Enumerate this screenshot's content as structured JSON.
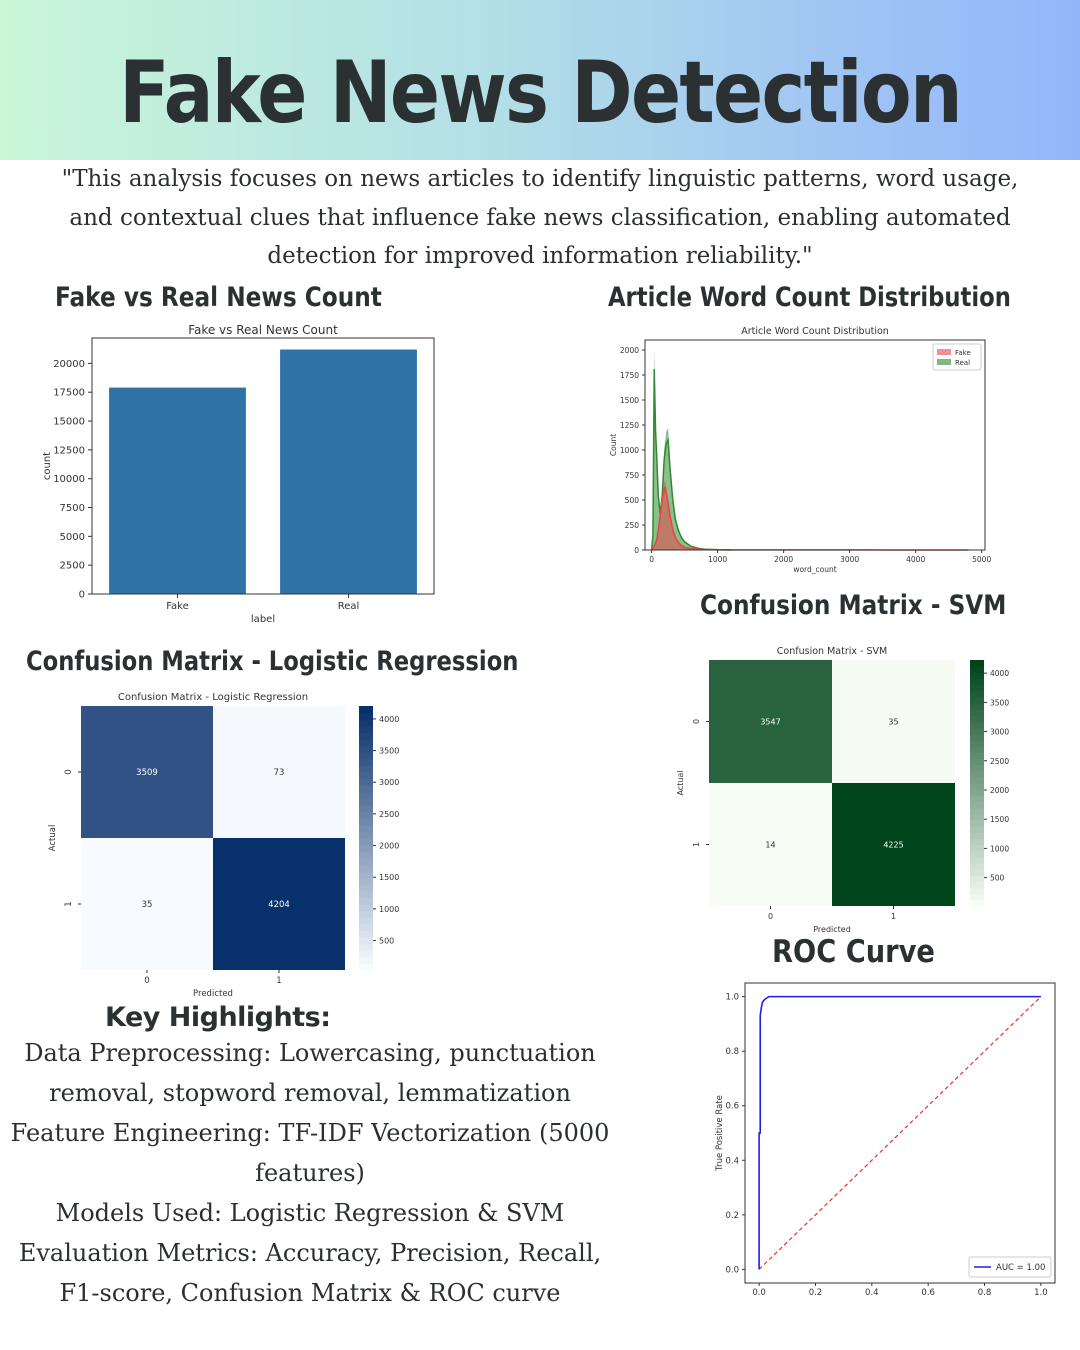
{
  "header": {
    "title": "Fake News Detection"
  },
  "intro": "\"This analysis focuses on news articles to identify linguistic patterns, word usage, and contextual clues that influence fake news classification, enabling automated detection for improved information reliability.\"",
  "sections": {
    "count_title": "Fake vs Real News Count",
    "word_count_title": "Article Word Count Distribution",
    "svm_title": "Confusion Matrix - SVM",
    "lr_title": "Confusion Matrix - Logistic Regression",
    "roc_title": "ROC Curve",
    "highlights_title": "Key Highlights:"
  },
  "highlights": [
    "Data Preprocessing: Lowercasing, punctuation removal, stopword removal, lemmatization",
    "Feature Engineering: TF-IDF Vectorization (5000 features)",
    "Models Used: Logistic Regression & SVM",
    "Evaluation Metrics: Accuracy, Precision, Recall, F1-score, Confusion Matrix & ROC curve"
  ],
  "colors": {
    "bar": "#2f73a6",
    "fake": "#e8444a",
    "real": "#2e8b2e",
    "roc": "#1f1fe0",
    "diag": "#e0332f"
  },
  "chart_data": [
    {
      "type": "bar",
      "title": "Fake vs Real News Count",
      "xlabel": "label",
      "ylabel": "count",
      "categories": [
        "Fake",
        "Real"
      ],
      "values": [
        17900,
        21200
      ],
      "ylim": [
        0,
        22200
      ],
      "yticks": [
        0,
        2500,
        5000,
        7500,
        10000,
        12500,
        15000,
        17500,
        20000
      ]
    },
    {
      "type": "area",
      "title": "Article Word Count Distribution",
      "xlabel": "word_count",
      "ylabel": "Count",
      "xlim": [
        -100,
        5050
      ],
      "ylim": [
        0,
        2100
      ],
      "xticks": [
        0,
        1000,
        2000,
        3000,
        4000,
        5000
      ],
      "yticks": [
        0,
        250,
        500,
        750,
        1000,
        1250,
        1500,
        1750,
        2000
      ],
      "legend": "top-right",
      "series": [
        {
          "name": "Fake",
          "x": [
            0,
            40,
            80,
            120,
            160,
            200,
            240,
            280,
            320,
            360,
            400,
            450,
            500,
            600,
            700,
            900,
            1200,
            2000,
            3000,
            4800
          ],
          "values": [
            0,
            40,
            120,
            320,
            560,
            700,
            560,
            380,
            230,
            140,
            90,
            50,
            30,
            15,
            8,
            4,
            2,
            1,
            1,
            0
          ]
        },
        {
          "name": "Real",
          "x": [
            0,
            20,
            40,
            60,
            80,
            100,
            130,
            160,
            190,
            220,
            250,
            280,
            320,
            360,
            400,
            450,
            500,
            600,
            700,
            800,
            1000,
            1200
          ],
          "values": [
            0,
            150,
            2010,
            1320,
            1000,
            620,
            400,
            600,
            1000,
            1180,
            1220,
            900,
            560,
            340,
            230,
            140,
            90,
            40,
            20,
            10,
            3,
            0
          ]
        }
      ]
    },
    {
      "type": "heatmap",
      "title": "Confusion Matrix - SVM",
      "xlabel": "Predicted",
      "ylabel": "Actual",
      "x": [
        "0",
        "1"
      ],
      "y": [
        "0",
        "1"
      ],
      "values": [
        [
          3547,
          35
        ],
        [
          14,
          4225
        ]
      ],
      "colorbar_ticks": [
        500,
        1000,
        1500,
        2000,
        2500,
        3000,
        3500,
        4000
      ]
    },
    {
      "type": "heatmap",
      "title": "Confusion Matrix - Logistic Regression",
      "xlabel": "Predicted",
      "ylabel": "Actual",
      "x": [
        "0",
        "1"
      ],
      "y": [
        "0",
        "1"
      ],
      "values": [
        [
          3509,
          73
        ],
        [
          35,
          4204
        ]
      ],
      "colorbar_ticks": [
        500,
        1000,
        1500,
        2000,
        2500,
        3000,
        3500,
        4000
      ]
    },
    {
      "type": "line",
      "title": "",
      "xlabel": "",
      "ylabel": "True Positive Rate",
      "xlim": [
        -0.05,
        1.05
      ],
      "ylim": [
        -0.05,
        1.05
      ],
      "xticks": [
        0.0,
        0.2,
        0.4,
        0.6,
        0.8,
        1.0
      ],
      "yticks": [
        0.0,
        0.2,
        0.4,
        0.6,
        0.8,
        1.0
      ],
      "legend": "bottom-right",
      "series": [
        {
          "name": "AUC = 1.00",
          "x": [
            0,
            0,
            0.004,
            0.004,
            0.008,
            0.012,
            0.02,
            0.035,
            0.06,
            1.0
          ],
          "values": [
            0,
            0.5,
            0.5,
            0.93,
            0.96,
            0.98,
            0.99,
            1.0,
            1.0,
            1.0
          ]
        },
        {
          "x": [
            0,
            1
          ],
          "values": [
            0,
            1
          ],
          "style": "dashed"
        }
      ]
    }
  ]
}
